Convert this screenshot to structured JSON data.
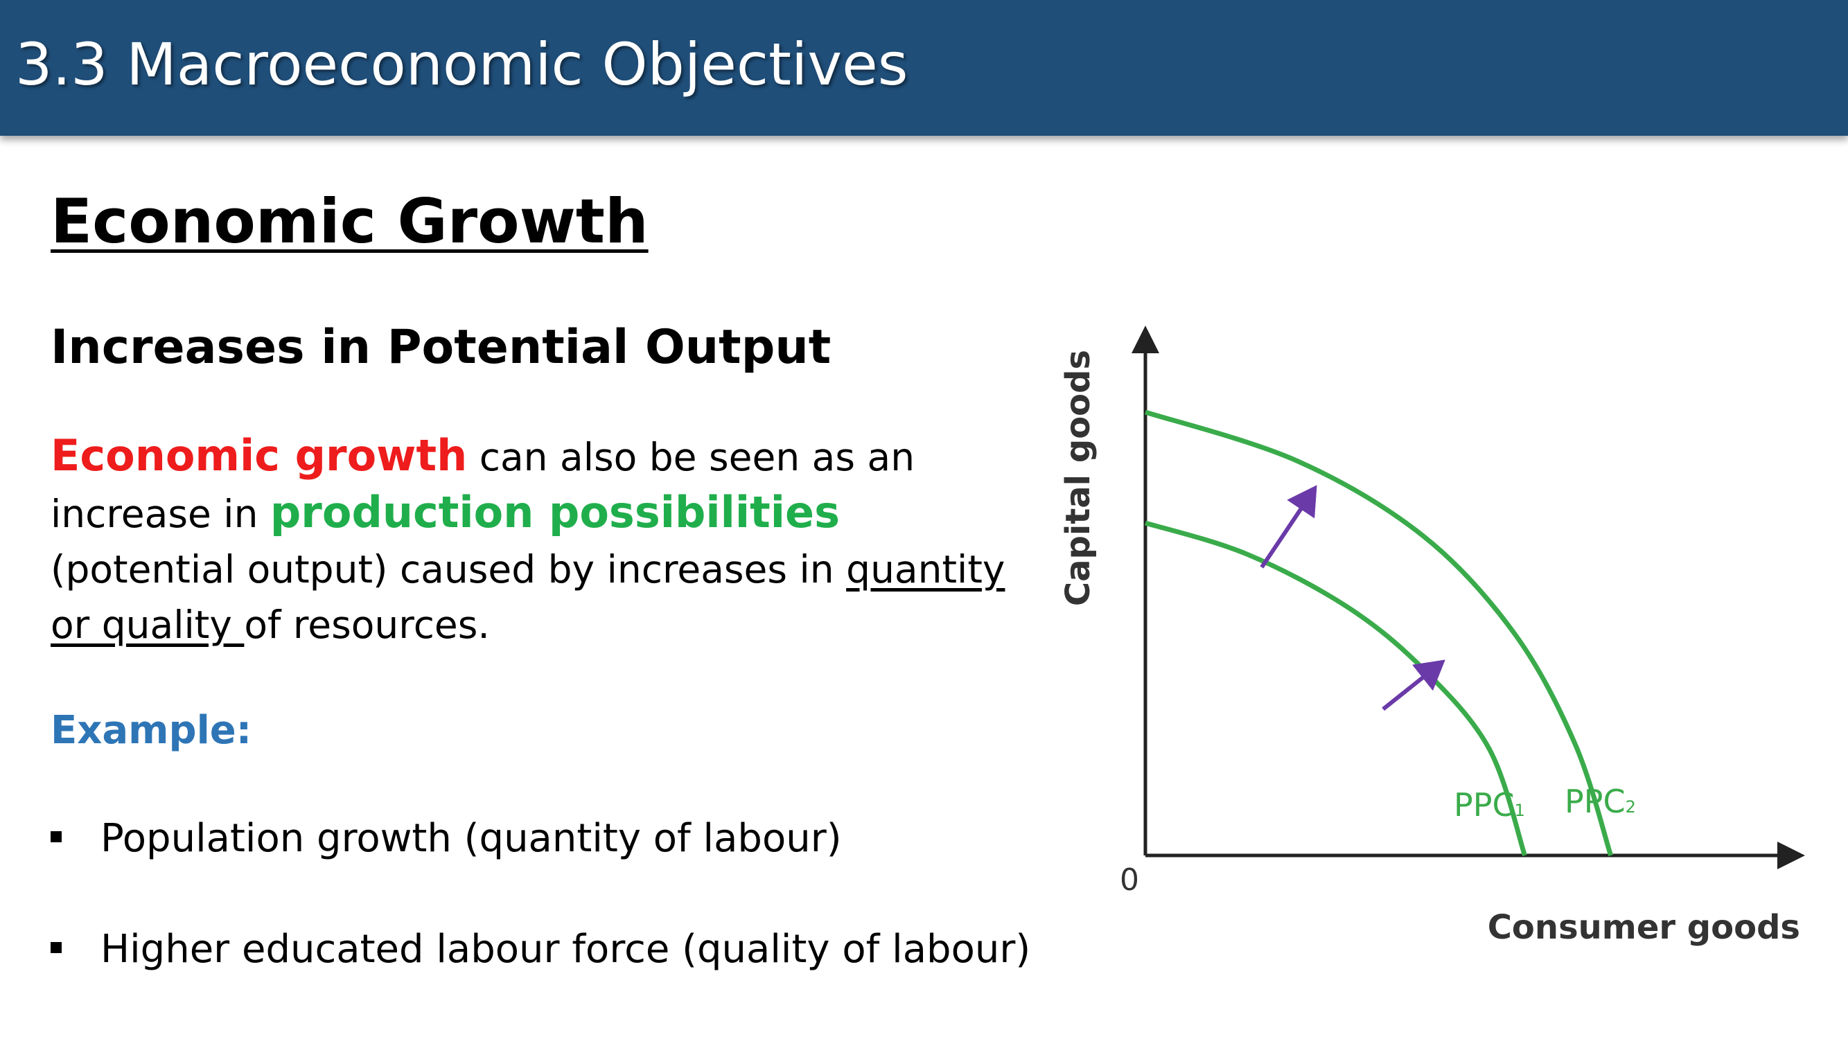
{
  "header": {
    "title": "3.3 Macroeconomic Objectives"
  },
  "section_title": "Economic Growth",
  "subheading": "Increases in Potential Output",
  "paragraph": {
    "term_red": "Economic growth",
    "text1": " can also be seen as an increase in ",
    "term_green": "production possibilities",
    "text2": " (potential output) caused by increases in ",
    "underlined": "quantity or quality ",
    "text3": "of resources."
  },
  "example_label": "Example:",
  "bullets": [
    "Population growth (quantity of labour)",
    "Higher educated labour force (quality of labour)"
  ],
  "colors": {
    "header_bg": "#1f4e79",
    "red_term": "#ee1c1c",
    "green_term": "#1fae4b",
    "example_blue": "#2e75b6",
    "curve_green": "#3aab4a",
    "arrow_purple": "#6a3aa8"
  },
  "chart_data": {
    "type": "line",
    "xlabel": "Consumer goods",
    "ylabel": "Capital goods",
    "origin_label": "0",
    "series": [
      {
        "name": "PPC",
        "subscript": "1",
        "points": [
          [
            0,
            75
          ],
          [
            20,
            68
          ],
          [
            40,
            56
          ],
          [
            55,
            42
          ],
          [
            68,
            24
          ],
          [
            75,
            0
          ]
        ]
      },
      {
        "name": "PPC",
        "subscript": "2",
        "points": [
          [
            0,
            100
          ],
          [
            30,
            89
          ],
          [
            55,
            72
          ],
          [
            73,
            50
          ],
          [
            85,
            25
          ],
          [
            92,
            0
          ]
        ]
      }
    ],
    "annotations": [
      {
        "type": "arrow",
        "from": [
          23,
          65
        ],
        "to": [
          33,
          82
        ]
      },
      {
        "type": "arrow",
        "from": [
          47,
          33
        ],
        "to": [
          58,
          43
        ]
      }
    ]
  }
}
